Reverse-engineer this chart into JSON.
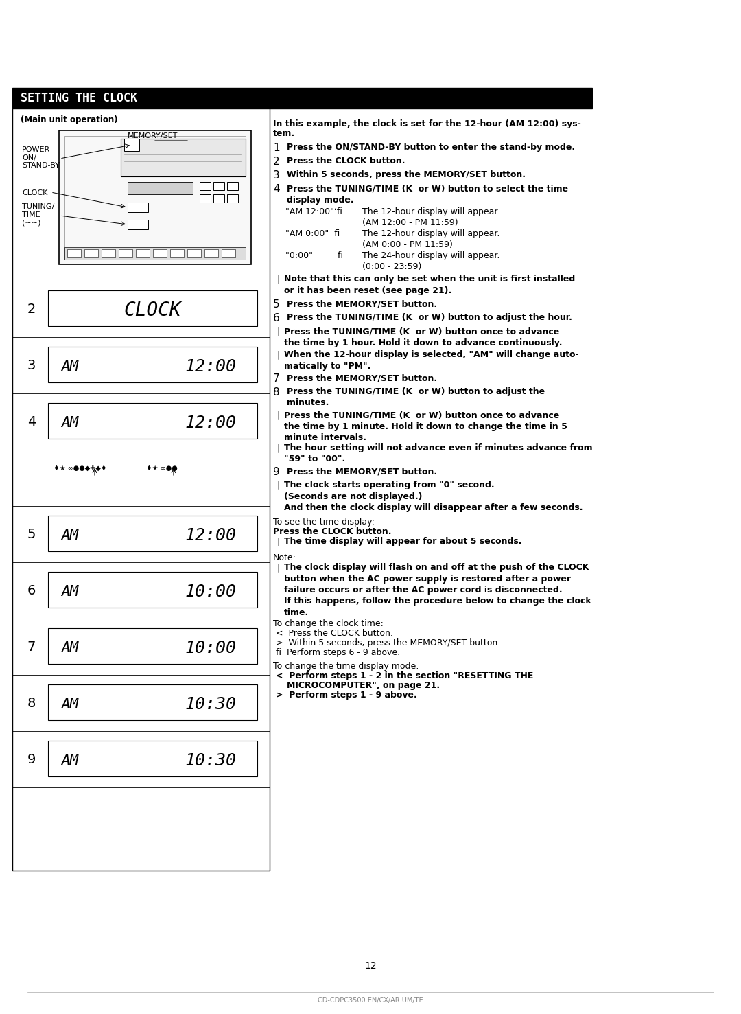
{
  "title": "SETTING THE CLOCK",
  "bg_color": "#ffffff",
  "title_bg": "#000000",
  "title_fg": "#ffffff",
  "page_num": "12",
  "footer_text": "CD-CDPC3500 EN/CX/AR UM/TE",
  "left_panel_note": "(Main unit operation)",
  "memory_set_label": "MEMORY/SET",
  "power_label": "POWER\nON/\nSTAND-BY",
  "clock_label": "CLOCK",
  "tuning_label": "TUNING/\nTIME\n(∼∼)",
  "intro_bold": "In this example, the clock is set for the 12-hour (AM 12:00) sys-\ntem.",
  "step1": "Press the ON/STAND-BY button to enter the stand-by mode.",
  "step2": "Press the CLOCK button.",
  "step3": "Within 5 seconds, press the MEMORY/SET button.",
  "step4": "Press the TUNING/TIME (K  or W) button to select the time\ndisplay mode.",
  "step4_s1_label": "\"AM 12:00\"‘fi",
  "step4_s1_text": "The 12-hour display will appear.\n(AM 12:00 - PM 11:59)",
  "step4_s2_label": "\"AM 0:00\"  fi",
  "step4_s2_text": "The 12-hour display will appear.\n(AM 0:00 - PM 11:59)",
  "step4_s3_label": "\"0:00\"         fi",
  "step4_s3_text": "The 24-hour display will appear.\n(0:00 - 23:59)",
  "step4_note": "Note that this can only be set when the unit is first installed\nor it has been reset (see page 21).",
  "step5": "Press the MEMORY/SET button.",
  "step6": "Press the TUNING/TIME (K  or W) button to adjust the hour.",
  "step6_n1": "Press the TUNING/TIME (K  or W) button once to advance\nthe time by 1 hour. Hold it down to advance continuously.",
  "step6_n2": "When the 12-hour display is selected, \"AM\" will change auto-\nmatically to \"PM\".",
  "step7": "Press the MEMORY/SET button.",
  "step8": "Press the TUNING/TIME (K  or W) button to adjust the\nminutes.",
  "step8_n1": "Press the TUNING/TIME (K  or W) button once to advance\nthe time by 1 minute. Hold it down to change the time in 5\nminute intervals.",
  "step8_n2": "The hour setting will not advance even if minutes advance from\n\"59\" to \"00\".",
  "step9": "Press the MEMORY/SET button.",
  "step9_n1": "The clock starts operating from \"0\" second.\n(Seconds are not displayed.)\nAnd then the clock display will disappear after a few seconds.",
  "see_time_head": "To see the time display:",
  "see_time_1": "Press the CLOCK button.",
  "see_time_2": "The time display will appear for about 5 seconds.",
  "note_head": "Note:",
  "note_1": "The clock display will flash on and off at the push of the CLOCK\nbutton when the AC power supply is restored after a power\nfailure occurs or after the AC power cord is disconnected.\nIf this happens, follow the procedure below to change the clock\ntime.",
  "change_clock_head": "To change the clock time:",
  "change_clock_1": "Press the CLOCK button.",
  "change_clock_2": "Within 5 seconds, press the MEMORY/SET button.",
  "change_clock_3": "Perform steps 6 - 9 above.",
  "change_mode_head": "To change the time display mode:",
  "change_mode_1": "Perform steps 1 - 2 in the section \"RESETTING THE\nMICROCOMPUTER\", on page 21.",
  "change_mode_2": "Perform steps 1 - 9 above."
}
